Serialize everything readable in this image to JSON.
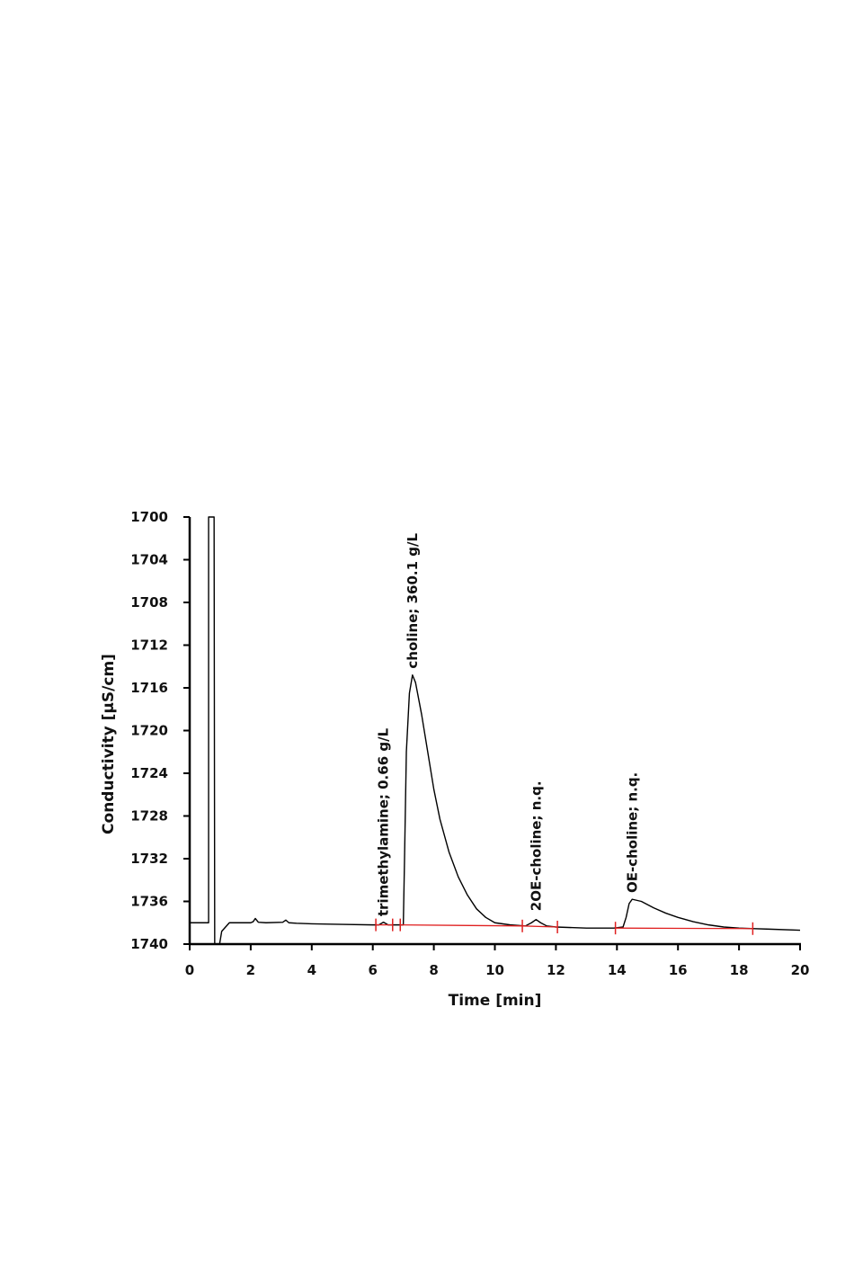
{
  "chart_data": {
    "type": "line",
    "title": "",
    "xlabel": "Time [min]",
    "ylabel": "Conductivity [µS/cm]",
    "xlim": [
      0,
      20
    ],
    "ylim": [
      1700,
      1740
    ],
    "y_inverted": true,
    "x_ticks": [
      "0",
      "2",
      "4",
      "6",
      "8",
      "10",
      "12",
      "14",
      "16",
      "18",
      "20"
    ],
    "y_ticks": [
      "1700",
      "1704",
      "1708",
      "1712",
      "1716",
      "1720",
      "1724",
      "1728",
      "1732",
      "1736",
      "1740"
    ],
    "grid": false,
    "series": [
      {
        "color": "#000000",
        "x": [
          0,
          0.62,
          0.62,
          0.64,
          0.8,
          0.82,
          0.9,
          0.98,
          1.05,
          1.3,
          2.0,
          2.08,
          2.15,
          2.25,
          2.5,
          3.05,
          3.15,
          3.25,
          3.5,
          4,
          5,
          6,
          6.2,
          6.35,
          6.5,
          6.8,
          7.0,
          7.04,
          7.1,
          7.2,
          7.3,
          7.4,
          7.6,
          7.8,
          8.0,
          8.2,
          8.5,
          8.8,
          9.1,
          9.4,
          9.7,
          10,
          10.5,
          11.0,
          11.2,
          11.35,
          11.5,
          11.7,
          12,
          13,
          13.9,
          14.2,
          14.3,
          14.4,
          14.5,
          14.8,
          15.2,
          15.6,
          16,
          16.5,
          17,
          17.5,
          18,
          18.5,
          19,
          20
        ],
        "y": [
          1738.0,
          1738.0,
          1700,
          1700,
          1700,
          1740,
          1740,
          1740,
          1738.8,
          1738.0,
          1738.0,
          1737.9,
          1737.6,
          1737.95,
          1738.0,
          1737.95,
          1737.75,
          1738.0,
          1738.05,
          1738.1,
          1738.15,
          1738.2,
          1738.2,
          1737.95,
          1738.2,
          1738.2,
          1738.2,
          1732,
          1722,
          1716.5,
          1714.8,
          1715.5,
          1718.5,
          1722.0,
          1725.5,
          1728.3,
          1731.4,
          1733.7,
          1735.4,
          1736.7,
          1737.5,
          1738.0,
          1738.2,
          1738.3,
          1738.0,
          1737.7,
          1738.0,
          1738.3,
          1738.4,
          1738.5,
          1738.5,
          1738.4,
          1737.5,
          1736.2,
          1735.8,
          1736.0,
          1736.6,
          1737.1,
          1737.5,
          1737.9,
          1738.2,
          1738.4,
          1738.5,
          1738.55,
          1738.6,
          1738.7
        ]
      },
      {
        "color": "#e02020",
        "role": "integration-baselines",
        "segments": [
          {
            "x": [
              6.1,
              6.65
            ],
            "y": [
              1738.2,
              1738.2
            ]
          },
          {
            "x": [
              6.9,
              10.9
            ],
            "y": [
              1738.2,
              1738.3
            ]
          },
          {
            "x": [
              10.9,
              12.05
            ],
            "y": [
              1738.3,
              1738.4
            ]
          },
          {
            "x": [
              13.95,
              18.45
            ],
            "y": [
              1738.5,
              1738.55
            ]
          }
        ],
        "markers_x": [
          6.1,
          6.65,
          6.9,
          10.9,
          12.05,
          13.95,
          18.45
        ]
      }
    ],
    "annotations": [
      {
        "text": "trimethylamine; 0.66 g/L",
        "x": 6.35,
        "y": 1737.4
      },
      {
        "text": "choline; 360.1 g/L",
        "x": 7.3,
        "y": 1714.2
      },
      {
        "text": "2OE-choline; n.q.",
        "x": 11.35,
        "y": 1736.9
      },
      {
        "text": "OE-choline; n.q.",
        "x": 14.5,
        "y": 1735.2
      }
    ]
  }
}
